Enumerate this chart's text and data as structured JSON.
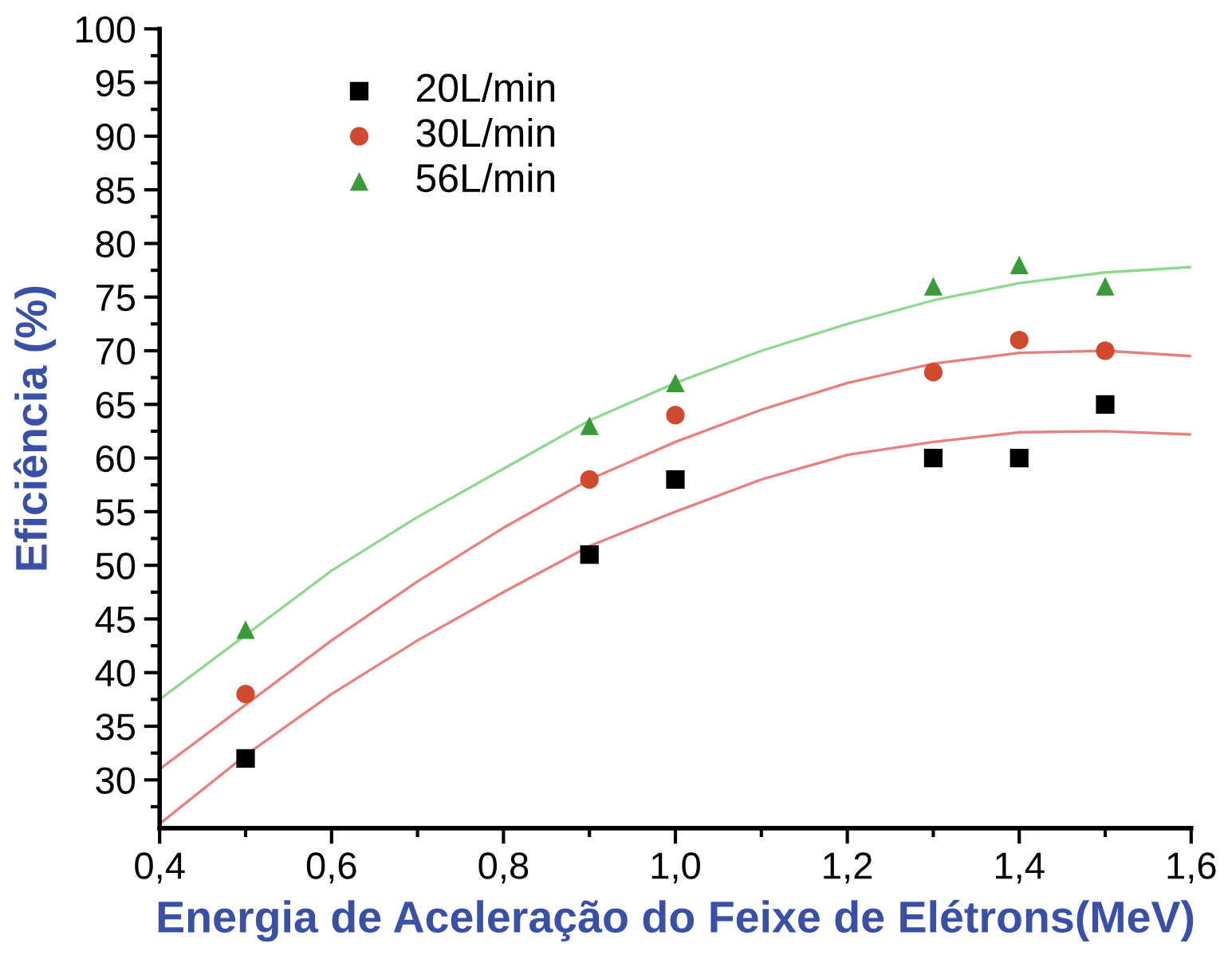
{
  "chart_data": {
    "type": "scatter",
    "xlabel": "Energia de Aceleração do Feixe de Elétrons(MeV)",
    "ylabel": "Eficiência (%)",
    "xlim": [
      0.4,
      1.6
    ],
    "xticks": [
      {
        "value": 0.4,
        "label": "0,4"
      },
      {
        "value": 0.6,
        "label": "0,6"
      },
      {
        "value": 0.8,
        "label": "0,8"
      },
      {
        "value": 1.0,
        "label": "1,0"
      },
      {
        "value": 1.2,
        "label": "1,2"
      },
      {
        "value": 1.4,
        "label": "1,4"
      },
      {
        "value": 1.6,
        "label": "1,6"
      }
    ],
    "ylim": [
      25.5,
      100
    ],
    "yticks": [
      30,
      35,
      40,
      45,
      50,
      55,
      60,
      65,
      70,
      75,
      80,
      85,
      90,
      95,
      100
    ],
    "grid": false,
    "legend": "top left",
    "series": [
      {
        "name": "20L/min",
        "marker": "square",
        "color": "#000000",
        "x": [
          0.5,
          0.9,
          1.0,
          1.3,
          1.4,
          1.5
        ],
        "values": [
          32,
          51,
          58,
          60,
          60,
          65
        ]
      },
      {
        "name": "30L/min",
        "marker": "circle",
        "color": "#d04a30",
        "x": [
          0.5,
          0.9,
          1.0,
          1.3,
          1.4,
          1.5
        ],
        "values": [
          38,
          58,
          64,
          68,
          71,
          70
        ]
      },
      {
        "name": "56L/min",
        "marker": "triangle",
        "color": "#3a9a3a",
        "x": [
          0.5,
          0.9,
          1.0,
          1.3,
          1.4,
          1.5
        ],
        "values": [
          44,
          63,
          67,
          76,
          78,
          76
        ]
      },
      {
        "type": "line",
        "color": "#e88080",
        "x": [
          0.4,
          0.5,
          0.6,
          0.7,
          0.8,
          0.9,
          1.0,
          1.1,
          1.2,
          1.3,
          1.4,
          1.5,
          1.6
        ],
        "values": [
          25.9,
          32.3,
          38,
          43,
          47.5,
          51.8,
          55,
          58,
          60.3,
          61.5,
          62.4,
          62.5,
          62.2
        ]
      },
      {
        "type": "line",
        "color": "#e88080",
        "x": [
          0.4,
          0.5,
          0.6,
          0.7,
          0.8,
          0.9,
          1.0,
          1.1,
          1.2,
          1.3,
          1.4,
          1.5,
          1.6
        ],
        "values": [
          31,
          37,
          43,
          48.5,
          53.5,
          58,
          61.5,
          64.5,
          67,
          68.8,
          69.8,
          70,
          69.5
        ]
      },
      {
        "type": "line",
        "color": "#90d890",
        "x": [
          0.4,
          0.5,
          0.6,
          0.7,
          0.8,
          0.9,
          1.0,
          1.1,
          1.2,
          1.3,
          1.4,
          1.5,
          1.6
        ],
        "values": [
          37.5,
          43.5,
          49.5,
          54.5,
          59,
          63.5,
          67,
          70,
          72.5,
          74.7,
          76.3,
          77.3,
          77.8
        ]
      }
    ]
  }
}
